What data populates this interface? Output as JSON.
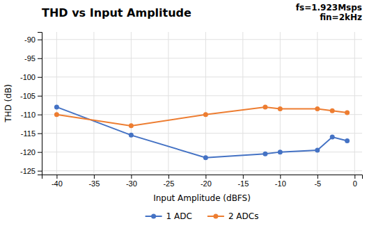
{
  "chart_data": {
    "type": "line",
    "title": "THD vs Input Amplitude",
    "annotations": [
      "fs=1.923Msps",
      "fin=2kHz"
    ],
    "xlabel": "Input Amplitude (dBFS)",
    "ylabel": "THD (dB)",
    "x": [
      -40,
      -30,
      -20,
      -12,
      -10,
      -5,
      -3,
      -1
    ],
    "series": [
      {
        "name": "1 ADC",
        "color": "#4472c4",
        "marker": "circle",
        "line_style": "solid",
        "values": [
          -108.0,
          -115.5,
          -121.5,
          -120.5,
          -120.0,
          -119.5,
          -116.0,
          -117.0
        ]
      },
      {
        "name": "2 ADCs",
        "color": "#ed7d31",
        "marker": "circle",
        "line_style": "solid",
        "values": [
          -110.0,
          -113.0,
          -110.0,
          -108.0,
          -108.5,
          -108.5,
          -109.0,
          -109.5
        ]
      }
    ],
    "xlim": [
      -42,
      1
    ],
    "ylim": [
      -126,
      -88
    ],
    "xticks": [
      -40,
      -35,
      -30,
      -25,
      -20,
      -15,
      -10,
      -5,
      0
    ],
    "yticks": [
      -90,
      -95,
      -100,
      -105,
      -110,
      -115,
      -120,
      -125
    ],
    "grid": true,
    "legend": "bottom"
  }
}
